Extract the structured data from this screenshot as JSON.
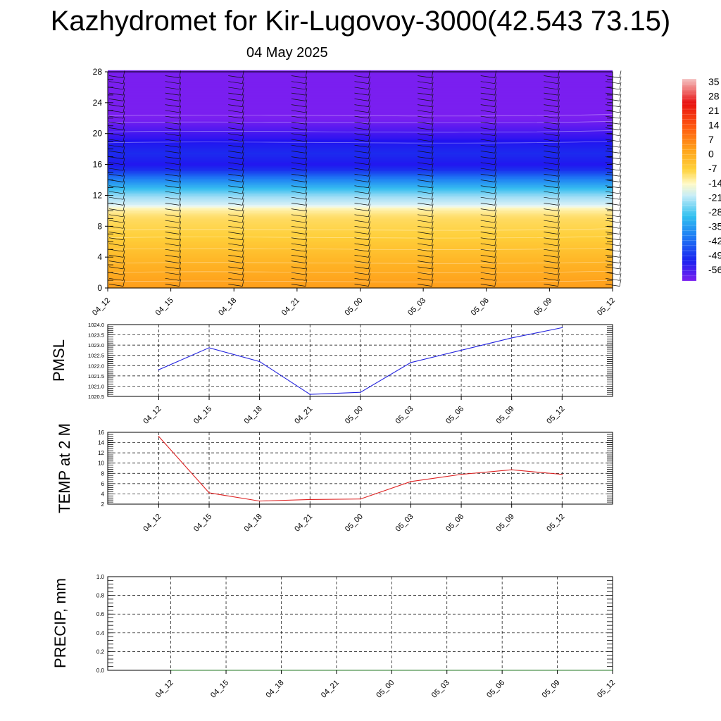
{
  "header": {
    "title": "Kazhydromet for Kir-Lugovoy-3000(42.543 73.15)",
    "date": "04 May 2025"
  },
  "chart_data": [
    {
      "type": "heatmap",
      "title": "",
      "x": [
        "04_12",
        "04_15",
        "04_18",
        "04_21",
        "05_00",
        "05_03",
        "05_06",
        "05_09",
        "05_12"
      ],
      "yticks": [
        0,
        4,
        8,
        12,
        16,
        20,
        24,
        28
      ],
      "ylim": [
        0,
        28
      ],
      "colorbar_labels": [
        "35",
        "28",
        "21",
        "14",
        "7",
        "0",
        "-7",
        "-14",
        "-21",
        "-28",
        "-35",
        "-42",
        "-49",
        "-56"
      ],
      "temperature_profile": [
        {
          "level": 0,
          "value": 10
        },
        {
          "level": 3,
          "value": 7
        },
        {
          "level": 6,
          "value": 3
        },
        {
          "level": 9,
          "value": -1
        },
        {
          "level": 10.3,
          "value": -6
        },
        {
          "level": 10.8,
          "value": -14
        },
        {
          "level": 12,
          "value": -22
        },
        {
          "level": 14,
          "value": -40
        },
        {
          "level": 16,
          "value": -56
        },
        {
          "level": 17.5,
          "value": -52
        },
        {
          "level": 19.5,
          "value": -58
        },
        {
          "level": 22,
          "value": -62
        },
        {
          "level": 28,
          "value": -62
        }
      ],
      "has_wind_barbs": true
    },
    {
      "type": "line",
      "ylabel": "PMSL",
      "color": "#2222dd",
      "x": [
        "04_12",
        "04_15",
        "04_18",
        "04_21",
        "05_00",
        "05_03",
        "05_06",
        "05_09",
        "05_12"
      ],
      "values": [
        1021.8,
        1022.87,
        1022.2,
        1020.6,
        1020.7,
        1022.15,
        1022.75,
        1023.35,
        1023.85
      ],
      "ylim": [
        1020.5,
        1024.0
      ],
      "yticks": [
        "1020.5",
        "1021.0",
        "1021.5",
        "1022.0",
        "1022.5",
        "1023.0",
        "1023.5",
        "1024.0"
      ],
      "grid": true
    },
    {
      "type": "line",
      "ylabel": "TEMP at 2 M",
      "color": "#dd2222",
      "x": [
        "04_12",
        "04_15",
        "04_18",
        "04_21",
        "05_00",
        "05_03",
        "05_06",
        "05_09",
        "05_12"
      ],
      "values": [
        15.2,
        4.2,
        2.6,
        2.9,
        3.0,
        6.4,
        7.8,
        8.7,
        7.8
      ],
      "ylim": [
        2,
        16
      ],
      "yticks": [
        "2",
        "4",
        "6",
        "8",
        "10",
        "12",
        "14",
        "16"
      ],
      "grid": true
    },
    {
      "type": "line",
      "ylabel": "PRECIP, mm",
      "color": "#227722",
      "x": [
        "04_12",
        "04_15",
        "04_18",
        "04_21",
        "05_00",
        "05_03",
        "05_06",
        "05_09",
        "05_12"
      ],
      "values": [
        0,
        0,
        0,
        0,
        0,
        0,
        0,
        0,
        0
      ],
      "ylim": [
        0,
        1
      ],
      "yticks": [
        "0.0",
        "0.2",
        "0.4",
        "0.6",
        "0.8",
        "1.0"
      ],
      "grid": true
    }
  ]
}
